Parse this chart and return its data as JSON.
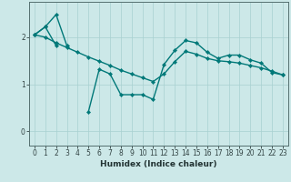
{
  "title": "",
  "xlabel": "Humidex (Indice chaleur)",
  "ylabel": "",
  "bg_color": "#cce8e8",
  "line_color": "#007878",
  "x": [
    0,
    1,
    2,
    3,
    4,
    5,
    6,
    7,
    8,
    9,
    10,
    11,
    12,
    13,
    14,
    15,
    16,
    17,
    18,
    19,
    20,
    21,
    22,
    23
  ],
  "line1": [
    2.05,
    2.22,
    2.48,
    1.82,
    null,
    0.42,
    1.32,
    1.22,
    0.78,
    0.78,
    0.78,
    0.68,
    1.42,
    1.72,
    1.93,
    1.88,
    1.68,
    1.55,
    1.62,
    1.62,
    1.52,
    1.45,
    1.25,
    1.2
  ],
  "line2": [
    2.05,
    2.22,
    1.82,
    null,
    null,
    null,
    null,
    null,
    null,
    null,
    null,
    null,
    null,
    null,
    null,
    null,
    null,
    null,
    null,
    null,
    null,
    null,
    null,
    null
  ],
  "line3": [
    2.05,
    2.0,
    1.88,
    1.78,
    1.68,
    1.58,
    1.49,
    1.4,
    1.3,
    1.22,
    1.14,
    1.06,
    1.22,
    1.48,
    1.7,
    1.64,
    1.55,
    1.5,
    1.48,
    1.45,
    1.4,
    1.35,
    1.28,
    1.2
  ],
  "ylim": [
    -0.3,
    2.75
  ],
  "xlim": [
    -0.5,
    23.5
  ],
  "yticks": [
    0,
    1,
    2
  ],
  "xticks": [
    0,
    1,
    2,
    3,
    4,
    5,
    6,
    7,
    8,
    9,
    10,
    11,
    12,
    13,
    14,
    15,
    16,
    17,
    18,
    19,
    20,
    21,
    22,
    23
  ]
}
